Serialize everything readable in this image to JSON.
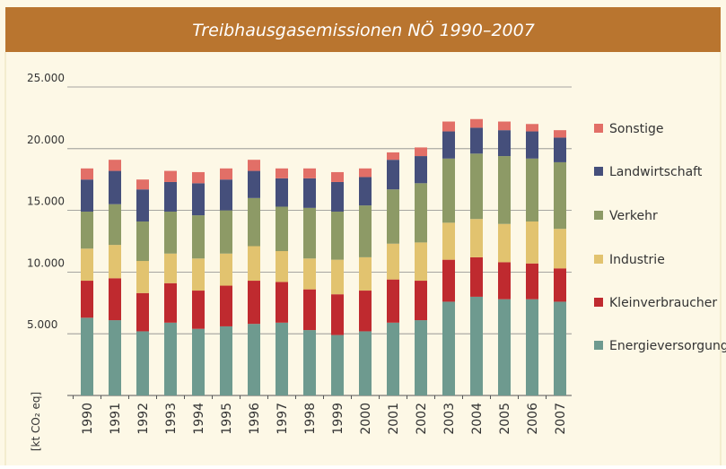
{
  "chart_data": {
    "type": "stacked-bar",
    "title": "Treibhausgasemissionen NÖ 1990–2007",
    "ylabel": "[kt CO₂ eq]",
    "categories": [
      "1990",
      "1991",
      "1992",
      "1993",
      "1994",
      "1995",
      "1996",
      "1997",
      "1998",
      "1999",
      "2000",
      "2001",
      "2002",
      "2003",
      "2004",
      "2005",
      "2006",
      "2007"
    ],
    "series": [
      {
        "name": "Energieversorgung",
        "color": "#6e9a8f",
        "values": [
          6300,
          6100,
          5200,
          5900,
          5400,
          5600,
          5800,
          5900,
          5300,
          4900,
          5200,
          5900,
          6100,
          7600,
          8000,
          7800,
          7800,
          7600
        ]
      },
      {
        "name": "Kleinverbraucher",
        "color": "#bf2a2f",
        "values": [
          3000,
          3400,
          3100,
          3200,
          3100,
          3300,
          3500,
          3300,
          3300,
          3300,
          3300,
          3500,
          3200,
          3400,
          3200,
          3000,
          2900,
          2700
        ]
      },
      {
        "name": "Industrie",
        "color": "#e2c36f",
        "values": [
          2600,
          2700,
          2600,
          2400,
          2600,
          2600,
          2800,
          2500,
          2500,
          2800,
          2700,
          2900,
          3100,
          3000,
          3100,
          3100,
          3400,
          3200
        ]
      },
      {
        "name": "Verkehr",
        "color": "#8d9a66",
        "values": [
          3000,
          3300,
          3200,
          3400,
          3500,
          3500,
          3900,
          3600,
          4100,
          3900,
          4200,
          4400,
          4800,
          5200,
          5300,
          5500,
          5100,
          5400
        ]
      },
      {
        "name": "Landwirtschaft",
        "color": "#454f7b",
        "values": [
          2600,
          2700,
          2600,
          2400,
          2600,
          2500,
          2200,
          2300,
          2400,
          2400,
          2300,
          2400,
          2200,
          2200,
          2100,
          2100,
          2200,
          2000
        ]
      },
      {
        "name": "Sonstige",
        "color": "#e26f67",
        "values": [
          900,
          900,
          800,
          900,
          900,
          900,
          900,
          800,
          800,
          800,
          700,
          600,
          700,
          800,
          700,
          700,
          600,
          600
        ]
      }
    ],
    "ylim": [
      0,
      25000
    ],
    "yticks": [
      {
        "value": 5000,
        "label": "5.000"
      },
      {
        "value": 10000,
        "label": "10.000"
      },
      {
        "value": 15000,
        "label": "15.000"
      },
      {
        "value": 20000,
        "label": "20.000"
      },
      {
        "value": 25000,
        "label": "25.000"
      }
    ],
    "grid": true
  }
}
